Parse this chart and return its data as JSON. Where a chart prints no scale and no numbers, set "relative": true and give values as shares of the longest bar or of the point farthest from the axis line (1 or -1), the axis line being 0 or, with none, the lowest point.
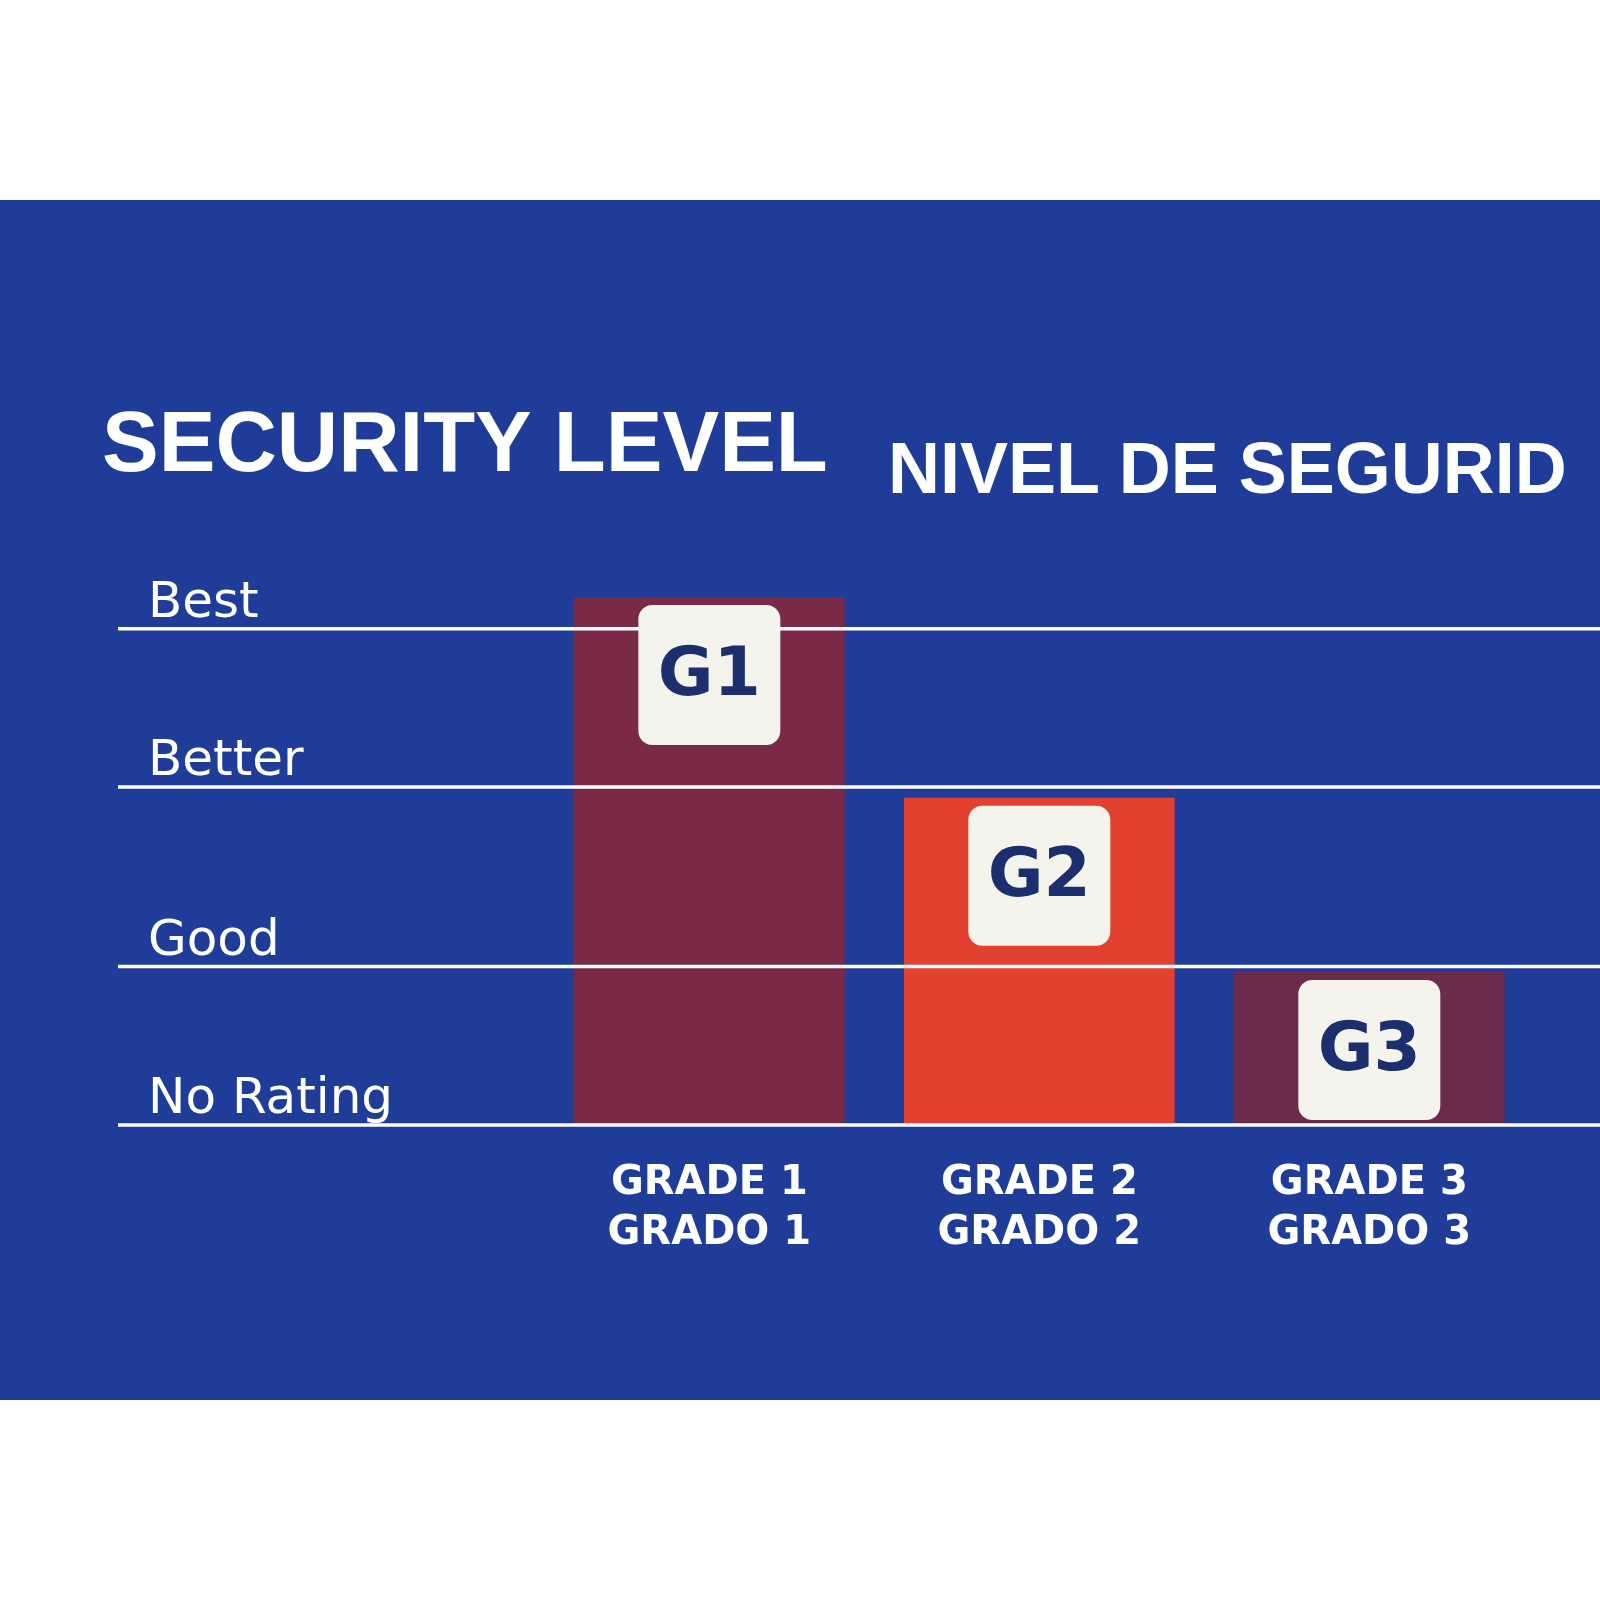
{
  "chart_data": {
    "type": "bar",
    "relative": true,
    "title": "SECURITY LEVEL",
    "subtitle": "NIVEL DE SEGURID",
    "categories": [
      "GRADE 1\nGRADO 1",
      "GRADE 2\nGRADO 2",
      "GRADE 3\nGRADO 3"
    ],
    "values": [
      1,
      0.62,
      0.29
    ],
    "colors": [
      "#7a2a46",
      "#e2412f",
      "#6b2b4c"
    ],
    "annotations": [
      {
        "text": "G1",
        "x": "GRADE 1\nGRADO 1",
        "y": 1
      },
      {
        "text": "G2",
        "x": "GRADE 2\nGRADO 2",
        "y": 0.62
      },
      {
        "text": "G3",
        "x": "GRADE 3\nGRADO 3",
        "y": 0.29
      }
    ],
    "ref_lines": [
      {
        "axis": "y",
        "value": 0.94,
        "label": "Best",
        "color": "#ffffff"
      },
      {
        "axis": "y",
        "value": 0.64,
        "label": "Better",
        "color": "#ffffff"
      },
      {
        "axis": "y",
        "value": 0.3,
        "label": "Good",
        "color": "#ffffff"
      },
      {
        "axis": "y",
        "value": 0,
        "label": "No Rating",
        "color": "#ffffff"
      }
    ],
    "legend": false
  }
}
